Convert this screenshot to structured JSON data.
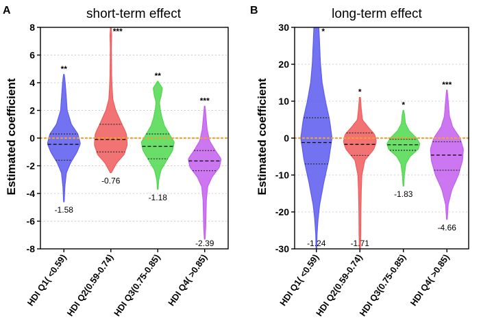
{
  "chart_data": [
    {
      "panel": "A",
      "type": "violin",
      "title": "short-term effect",
      "ylabel": "Estimated coefficient",
      "ylim": [
        -8,
        8
      ],
      "yticks": [
        8,
        6,
        4,
        2,
        0,
        -2,
        -4,
        -6,
        -8
      ],
      "reference_line": 0,
      "categories": [
        "HDI Q1( <0.59)",
        "HDI Q2(0.59-0.74)",
        "HDI Q3(0.75-0.85)",
        "HDI Q4( >0.85)"
      ],
      "series": [
        {
          "name": "HDI Q1( <0.59)",
          "color": "#5b5bf0",
          "min": -4.6,
          "max": 4.6,
          "median": -0.45,
          "q1": -1.6,
          "q3": 0.3,
          "value_label": "-1.58",
          "significance": "**",
          "profile": [
            [
              -4.6,
              0.02
            ],
            [
              -3.5,
              0.06
            ],
            [
              -2.5,
              0.15
            ],
            [
              -1.8,
              0.4
            ],
            [
              -1.0,
              0.8
            ],
            [
              -0.4,
              1.0
            ],
            [
              0.3,
              0.85
            ],
            [
              1.0,
              0.45
            ],
            [
              2.0,
              0.2
            ],
            [
              3.0,
              0.14
            ],
            [
              4.0,
              0.08
            ],
            [
              4.6,
              0.02
            ]
          ]
        },
        {
          "name": "HDI Q2(0.59-0.74)",
          "color": "#f05a5a",
          "min": -2.5,
          "max": 8.0,
          "median": -0.1,
          "q1": -1.0,
          "q3": 1.0,
          "value_label": "-0.76",
          "significance": "***",
          "profile": [
            [
              -2.5,
              0.03
            ],
            [
              -1.8,
              0.35
            ],
            [
              -1.2,
              0.8
            ],
            [
              -0.5,
              1.0
            ],
            [
              0.3,
              0.95
            ],
            [
              1.2,
              0.6
            ],
            [
              2.0,
              0.3
            ],
            [
              2.8,
              0.12
            ],
            [
              3.6,
              0.08
            ],
            [
              4.5,
              0.05
            ],
            [
              5.5,
              0.04
            ],
            [
              6.5,
              0.03
            ],
            [
              7.4,
              0.05
            ],
            [
              8.0,
              0.02
            ]
          ]
        },
        {
          "name": "HDI Q3(0.75-0.85)",
          "color": "#4fd84f",
          "min": -3.7,
          "max": 4.1,
          "median": -0.6,
          "q1": -1.5,
          "q3": 0.3,
          "value_label": "-1.18",
          "significance": "**",
          "profile": [
            [
              -3.7,
              0.02
            ],
            [
              -3.0,
              0.06
            ],
            [
              -2.3,
              0.2
            ],
            [
              -1.6,
              0.55
            ],
            [
              -0.9,
              0.9
            ],
            [
              -0.3,
              1.0
            ],
            [
              0.3,
              0.7
            ],
            [
              0.9,
              0.4
            ],
            [
              1.5,
              0.25
            ],
            [
              2.1,
              0.15
            ],
            [
              2.6,
              0.1
            ],
            [
              3.0,
              0.2
            ],
            [
              3.6,
              0.28
            ],
            [
              4.1,
              0.02
            ]
          ]
        },
        {
          "name": "HDI Q4( >0.85)",
          "color": "#c35ef0",
          "min": -7.3,
          "max": 2.3,
          "median": -1.65,
          "q1": -2.35,
          "q3": -0.9,
          "value_label": "-2.39",
          "significance": "***",
          "profile": [
            [
              -7.3,
              0.02
            ],
            [
              -6.5,
              0.06
            ],
            [
              -5.5,
              0.08
            ],
            [
              -4.5,
              0.1
            ],
            [
              -3.5,
              0.18
            ],
            [
              -2.8,
              0.45
            ],
            [
              -2.1,
              0.9
            ],
            [
              -1.5,
              1.0
            ],
            [
              -0.9,
              0.65
            ],
            [
              -0.2,
              0.3
            ],
            [
              0.6,
              0.15
            ],
            [
              1.5,
              0.08
            ],
            [
              2.3,
              0.02
            ]
          ]
        }
      ]
    },
    {
      "panel": "B",
      "type": "violin",
      "title": "long-term effect",
      "ylabel": "Estimated coefficient",
      "ylim": [
        -30,
        30
      ],
      "yticks": [
        30,
        20,
        10,
        0,
        -10,
        -20,
        -30
      ],
      "reference_line": 0,
      "categories": [
        "HDI Q1( <0.59)",
        "HDI Q2(0.59-0.74)",
        "HDI Q3(0.75-0.85)",
        "HDI Q4( >0.85)"
      ],
      "series": [
        {
          "name": "HDI Q1( <0.59)",
          "color": "#5b5bf0",
          "min": -30,
          "max": 30,
          "median": -1.2,
          "q1": -7,
          "q3": 5.5,
          "value_label": "-1.24",
          "significance": "*",
          "profile": [
            [
              -30,
              0.02
            ],
            [
              -26,
              0.04
            ],
            [
              -22,
              0.1
            ],
            [
              -18,
              0.2
            ],
            [
              -12,
              0.45
            ],
            [
              -6,
              0.75
            ],
            [
              0,
              0.95
            ],
            [
              5,
              0.8
            ],
            [
              10,
              0.55
            ],
            [
              15,
              0.35
            ],
            [
              20,
              0.25
            ],
            [
              25,
              0.2
            ],
            [
              30,
              0.15
            ]
          ]
        },
        {
          "name": "HDI Q2(0.59-0.74)",
          "color": "#f05a5a",
          "min": -30,
          "max": 11,
          "median": -1.7,
          "q1": -4.7,
          "q3": 1.4,
          "value_label": "-1.71",
          "significance": "*",
          "profile": [
            [
              -30,
              0.03
            ],
            [
              -26,
              0.05
            ],
            [
              -20,
              0.06
            ],
            [
              -15,
              0.08
            ],
            [
              -10,
              0.12
            ],
            [
              -6,
              0.3
            ],
            [
              -3,
              0.85
            ],
            [
              -1,
              1.0
            ],
            [
              1,
              0.9
            ],
            [
              3,
              0.5
            ],
            [
              5,
              0.15
            ],
            [
              8,
              0.08
            ],
            [
              11,
              0.03
            ]
          ]
        },
        {
          "name": "HDI Q3(0.75-0.85)",
          "color": "#4fd84f",
          "min": -13,
          "max": 7.5,
          "median": -1.8,
          "q1": -3.3,
          "q3": -0.3,
          "value_label": "-1.83",
          "significance": "*",
          "profile": [
            [
              -13,
              0.02
            ],
            [
              -10,
              0.06
            ],
            [
              -7,
              0.15
            ],
            [
              -5,
              0.4
            ],
            [
              -3,
              0.9
            ],
            [
              -1.5,
              1.0
            ],
            [
              0,
              0.8
            ],
            [
              2,
              0.35
            ],
            [
              4,
              0.12
            ],
            [
              6,
              0.08
            ],
            [
              7.5,
              0.02
            ]
          ]
        },
        {
          "name": "HDI Q4( >0.85)",
          "color": "#c35ef0",
          "min": -22,
          "max": 13,
          "median": -4.6,
          "q1": -8.7,
          "q3": -1.0,
          "value_label": "-4.66",
          "significance": "***",
          "profile": [
            [
              -22,
              0.02
            ],
            [
              -18,
              0.08
            ],
            [
              -14,
              0.3
            ],
            [
              -10,
              0.7
            ],
            [
              -6,
              0.95
            ],
            [
              -3,
              1.0
            ],
            [
              0,
              0.8
            ],
            [
              3,
              0.35
            ],
            [
              6,
              0.15
            ],
            [
              9,
              0.1
            ],
            [
              13,
              0.02
            ]
          ]
        }
      ]
    }
  ],
  "colors": {
    "reference_line": "#f5a02a",
    "grid": "#cccccc"
  }
}
